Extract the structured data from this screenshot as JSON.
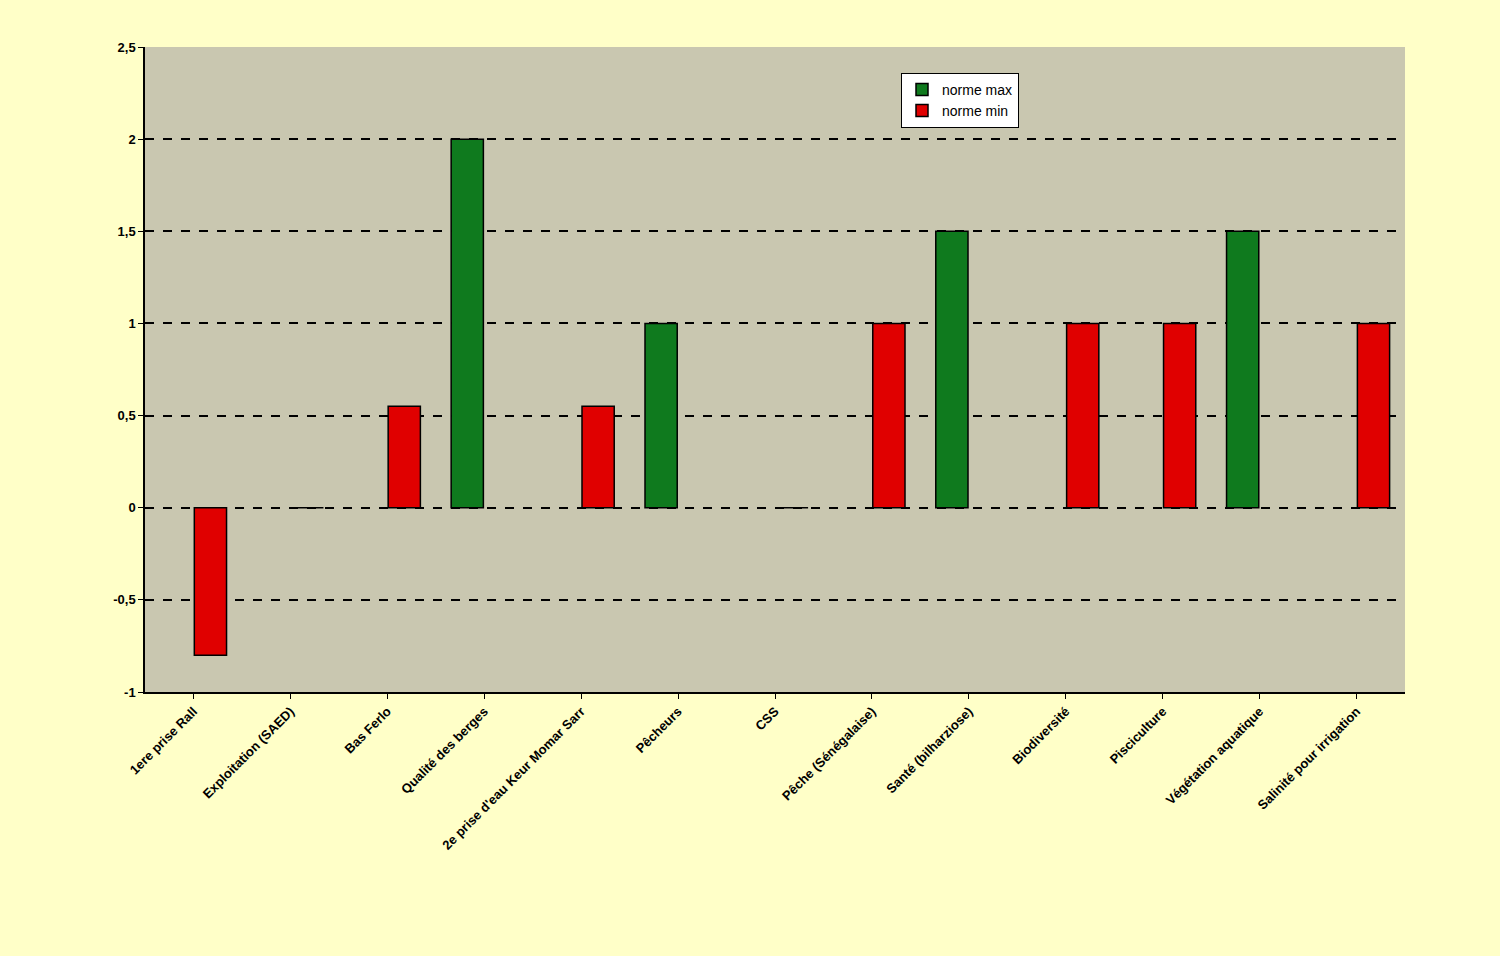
{
  "chart_data": {
    "type": "bar",
    "categories": [
      "1ere prise Rall",
      "Exploitation (SAED)",
      "Bas Ferlo",
      "Qualité des berges",
      "2e prise d'eau Keur Momar Sarr",
      "Pêcheurs",
      "CSS",
      "Pêche (Sénégalaise)",
      "Santé (bilharziose)",
      "Biodiversité",
      "Pisciculture",
      "Végétation aquatique",
      "Salinité pour irrigation"
    ],
    "series": [
      {
        "name": "norme max",
        "color": "#0f7a1e",
        "values": [
          null,
          null,
          null,
          2,
          null,
          1,
          null,
          null,
          1.5,
          null,
          null,
          1.5,
          null
        ]
      },
      {
        "name": "norme min",
        "color": "#e00000",
        "values": [
          -0.8,
          0,
          0.55,
          null,
          0.55,
          null,
          0,
          1,
          null,
          1,
          1,
          null,
          1
        ]
      }
    ],
    "ylim": [
      -1,
      2.5
    ],
    "yticks": [
      -1,
      {
        "value": -0.5,
        "label": "-0,5"
      },
      0,
      {
        "value": 0.5,
        "label": "0,5"
      },
      1,
      {
        "value": 1.5,
        "label": "1,5"
      },
      2,
      {
        "value": 2.5,
        "label": "2,5"
      }
    ],
    "grid": true,
    "legend": "top-right"
  }
}
